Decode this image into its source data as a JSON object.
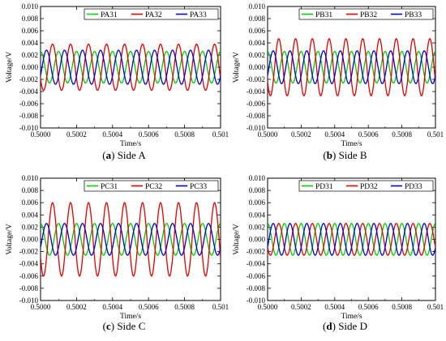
{
  "chart_data": [
    {
      "type": "line",
      "caption_letter": "a",
      "caption_text": "Side A",
      "xlabel": "Time/s",
      "ylabel": "Voltage/V",
      "xlim": [
        0.5,
        0.501
      ],
      "ylim": [
        -0.01,
        0.01
      ],
      "x_ticks": [
        "0.5000",
        "0.5002",
        "0.5004",
        "0.5006",
        "0.5008",
        "0.501"
      ],
      "y_ticks": [
        "0.010",
        "0.008",
        "0.006",
        "0.004",
        "0.002",
        "0.000",
        "-0.002",
        "-0.004",
        "-0.006",
        "-0.008",
        "-0.010"
      ],
      "legend_position": "top-right",
      "series": [
        {
          "name": "PA31",
          "color": "#00cc00",
          "amplitude": 0.0026,
          "frequency_hz": 10000,
          "phase_deg": 90
        },
        {
          "name": "PA32",
          "color": "#dd0000",
          "amplitude": 0.0038,
          "frequency_hz": 10000,
          "phase_deg": 210
        },
        {
          "name": "PA33",
          "color": "#0000cc",
          "amplitude": 0.0028,
          "frequency_hz": 10000,
          "phase_deg": 330
        }
      ]
    },
    {
      "type": "line",
      "caption_letter": "b",
      "caption_text": "Side B",
      "xlabel": "Time/s",
      "ylabel": "Voltage/V",
      "xlim": [
        0.5,
        0.501
      ],
      "ylim": [
        -0.01,
        0.01
      ],
      "x_ticks": [
        "0.5000",
        "0.5002",
        "0.5004",
        "0.5006",
        "0.5008",
        "0.501"
      ],
      "y_ticks": [
        "0.010",
        "0.008",
        "0.006",
        "0.004",
        "0.002",
        "0.000",
        "-0.002",
        "-0.004",
        "-0.006",
        "-0.008",
        "-0.010"
      ],
      "legend_position": "top-right",
      "series": [
        {
          "name": "PB31",
          "color": "#00cc00",
          "amplitude": 0.0026,
          "frequency_hz": 10000,
          "phase_deg": 90
        },
        {
          "name": "PB32",
          "color": "#dd0000",
          "amplitude": 0.0047,
          "frequency_hz": 10000,
          "phase_deg": 210
        },
        {
          "name": "PB33",
          "color": "#0000cc",
          "amplitude": 0.0027,
          "frequency_hz": 10000,
          "phase_deg": 330
        }
      ]
    },
    {
      "type": "line",
      "caption_letter": "c",
      "caption_text": "Side C",
      "xlabel": "Time/s",
      "ylabel": "Voltage/V",
      "xlim": [
        0.5,
        0.501
      ],
      "ylim": [
        -0.01,
        0.01
      ],
      "x_ticks": [
        "0.5000",
        "0.5002",
        "0.5004",
        "0.5006",
        "0.5008",
        "0.501"
      ],
      "y_ticks": [
        "0.010",
        "0.008",
        "0.006",
        "0.004",
        "0.002",
        "0.000",
        "-0.002",
        "-0.004",
        "-0.006",
        "-0.008",
        "-0.010"
      ],
      "legend_position": "top-right",
      "series": [
        {
          "name": "PC31",
          "color": "#00cc00",
          "amplitude": 0.0026,
          "frequency_hz": 10000,
          "phase_deg": 90
        },
        {
          "name": "PC32",
          "color": "#dd0000",
          "amplitude": 0.006,
          "frequency_hz": 10000,
          "phase_deg": 210
        },
        {
          "name": "PC33",
          "color": "#0000cc",
          "amplitude": 0.0026,
          "frequency_hz": 10000,
          "phase_deg": 330
        }
      ]
    },
    {
      "type": "line",
      "caption_letter": "d",
      "caption_text": "Side D",
      "xlabel": "Time/s",
      "ylabel": "Voltage/V",
      "xlim": [
        0.5,
        0.501
      ],
      "ylim": [
        -0.01,
        0.01
      ],
      "x_ticks": [
        "0.5000",
        "0.5002",
        "0.5004",
        "0.5006",
        "0.5008",
        "0.501"
      ],
      "y_ticks": [
        "0.010",
        "0.008",
        "0.006",
        "0.004",
        "0.002",
        "0.000",
        "-0.002",
        "-0.004",
        "-0.006",
        "-0.008",
        "-0.010"
      ],
      "legend_position": "top-right",
      "series": [
        {
          "name": "PD31",
          "color": "#00cc00",
          "amplitude": 0.0026,
          "frequency_hz": 10000,
          "phase_deg": 90
        },
        {
          "name": "PD32",
          "color": "#dd0000",
          "amplitude": 0.0026,
          "frequency_hz": 10000,
          "phase_deg": 210
        },
        {
          "name": "PD33",
          "color": "#0000cc",
          "amplitude": 0.0026,
          "frequency_hz": 10000,
          "phase_deg": 330
        }
      ]
    }
  ]
}
